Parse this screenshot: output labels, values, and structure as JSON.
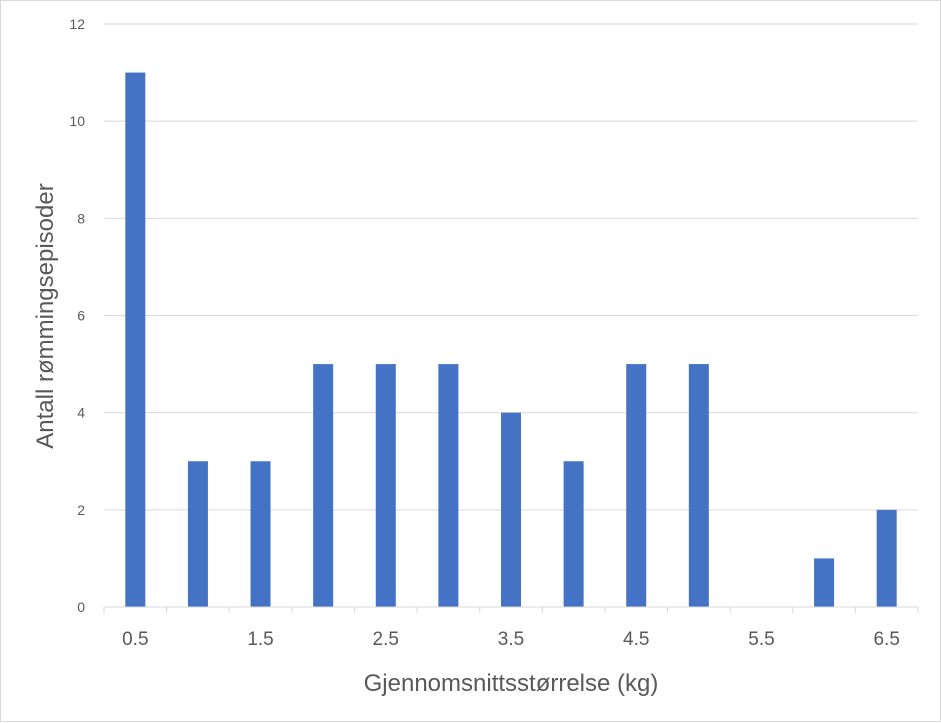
{
  "chart_data": {
    "type": "bar",
    "title": "",
    "xlabel": "Gjennomsnittsstørrelse (kg)",
    "ylabel": "Antall rømmingsepisoder",
    "categories": [
      "0.5",
      "1",
      "1.5",
      "2",
      "2.5",
      "3",
      "3.5",
      "4",
      "4.5",
      "5",
      "5.5",
      "6",
      "6.5"
    ],
    "values": [
      11,
      3,
      3,
      5,
      5,
      5,
      4,
      3,
      5,
      5,
      0,
      1,
      2
    ],
    "x_tick_labels": [
      "0.5",
      "1.5",
      "2.5",
      "3.5",
      "4.5",
      "5.5",
      "6.5"
    ],
    "y_ticks": [
      "0",
      "2",
      "4",
      "6",
      "8",
      "10",
      "12"
    ],
    "ylim": [
      0,
      12
    ],
    "grid": true,
    "legend": "none",
    "bar_color": "#4472c4"
  }
}
